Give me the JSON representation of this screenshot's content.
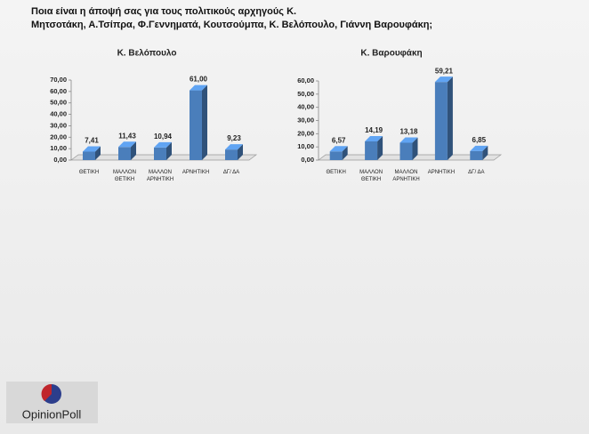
{
  "heading": [
    "Ποια είναι η άποψή σας για τους πολιτικούς αρχηγούς Κ.",
    "Μητσοτάκη, Α.Τσίπρα, Φ.Γεννηματά, Κουτσούμπα, Κ. Βελόπουλο, Γιάννη Βαρουφάκη;"
  ],
  "logo": "OpinionPoll",
  "chart_data": [
    {
      "type": "bar",
      "title": "Κ. Βελόπουλο",
      "categories": [
        "ΘΕΤΙΚΗ",
        "ΜΑΛΛΟΝ ΘΕΤΙΚΗ",
        "ΜΑΛΛΟΝ ΑΡΝΗΤΙΚΗ",
        "ΑΡΝΗΤΙΚΗ",
        "ΔΓ/ ΔΑ"
      ],
      "values": [
        7.41,
        11.43,
        10.94,
        61.0,
        9.23
      ],
      "value_labels": [
        "7,41",
        "11,43",
        "10,94",
        "61,00",
        "9,23"
      ],
      "color": "#4a7ebb",
      "ylim": [
        0,
        70
      ],
      "yticks": [
        {
          "value": 0,
          "label": "0,00"
        },
        {
          "value": 10,
          "label": "10,00"
        },
        {
          "value": 20,
          "label": "20,00"
        },
        {
          "value": 30,
          "label": "30,00"
        },
        {
          "value": 40,
          "label": "40,00"
        },
        {
          "value": 50,
          "label": "50,00"
        },
        {
          "value": 60,
          "label": "60,00"
        },
        {
          "value": 70,
          "label": "70,00"
        }
      ]
    },
    {
      "type": "bar",
      "title": "Κ. Βαρουφάκη",
      "categories": [
        "ΘΕΤΙΚΗ",
        "ΜΑΛΛΟΝ ΘΕΤΙΚΗ",
        "ΜΑΛΛΟΝ ΑΡΝΗΤΙΚΗ",
        "ΑΡΝΗΤΙΚΗ",
        "ΔΓ/ ΔΑ"
      ],
      "values": [
        6.57,
        14.19,
        13.18,
        59.21,
        6.85
      ],
      "value_labels": [
        "6,57",
        "14,19",
        "13,18",
        "59,21",
        "6,85"
      ],
      "color": "#4a7ebb",
      "ylim": [
        0,
        60
      ],
      "yticks": [
        {
          "value": 0,
          "label": "0,00"
        },
        {
          "value": 10,
          "label": "10,00"
        },
        {
          "value": 20,
          "label": "20,00"
        },
        {
          "value": 30,
          "label": "30,00"
        },
        {
          "value": 40,
          "label": "40,00"
        },
        {
          "value": 50,
          "label": "50,00"
        },
        {
          "value": 60,
          "label": "60,00"
        }
      ]
    }
  ]
}
